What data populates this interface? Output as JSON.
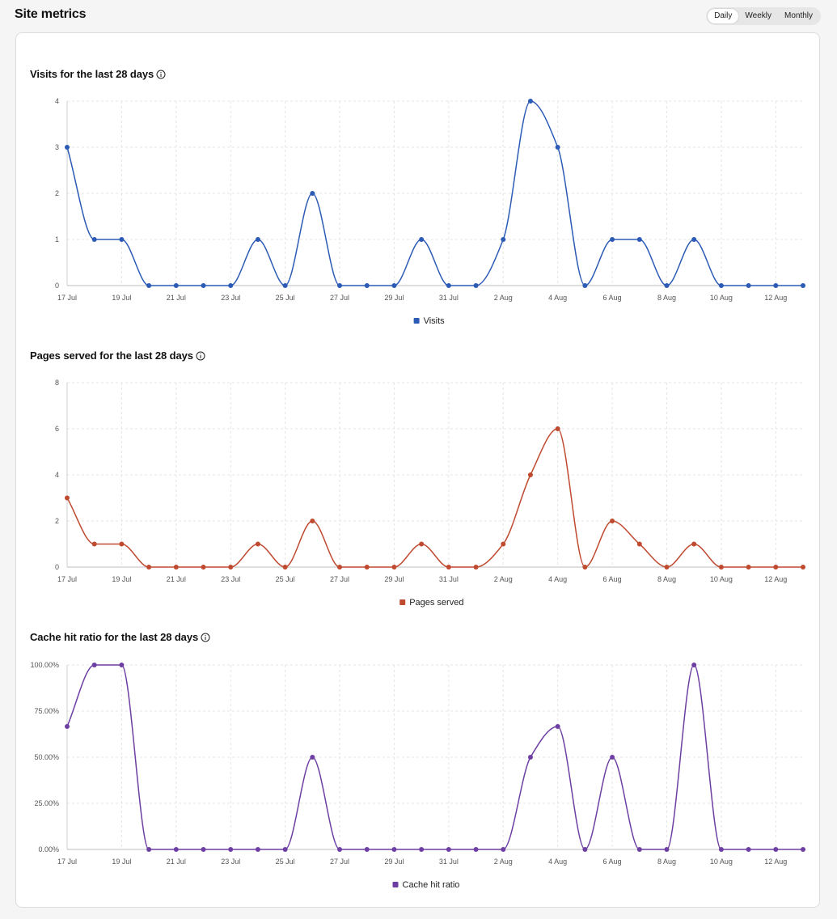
{
  "header": {
    "title": "Site metrics",
    "period_options": [
      "Daily",
      "Weekly",
      "Monthly"
    ],
    "period_selected": "Daily"
  },
  "x_dates": [
    "17 Jul",
    "18 Jul",
    "19 Jul",
    "20 Jul",
    "21 Jul",
    "22 Jul",
    "23 Jul",
    "24 Jul",
    "25 Jul",
    "26 Jul",
    "27 Jul",
    "28 Jul",
    "29 Jul",
    "30 Jul",
    "31 Jul",
    "1 Aug",
    "2 Aug",
    "3 Aug",
    "4 Aug",
    "5 Aug",
    "6 Aug",
    "7 Aug",
    "8 Aug",
    "9 Aug",
    "10 Aug",
    "11 Aug",
    "12 Aug",
    "13 Aug"
  ],
  "x_tick_labels": [
    "17 Jul",
    "19 Jul",
    "21 Jul",
    "23 Jul",
    "25 Jul",
    "27 Jul",
    "29 Jul",
    "31 Jul",
    "2 Aug",
    "4 Aug",
    "6 Aug",
    "8 Aug",
    "10 Aug",
    "12 Aug"
  ],
  "chart_data": [
    {
      "type": "line",
      "title": "Visits for the last 28 days",
      "series": [
        {
          "name": "Visits",
          "color": "#2c5bb5",
          "values": [
            3,
            1,
            1,
            0,
            0,
            0,
            0,
            1,
            0,
            2,
            0,
            0,
            0,
            1,
            0,
            0,
            1,
            4,
            3,
            0,
            1,
            1,
            0,
            1,
            0,
            0,
            0,
            0
          ]
        }
      ],
      "ylim": [
        0,
        4
      ],
      "yticks": [
        "0",
        "1",
        "2",
        "3",
        "4"
      ],
      "grid": true,
      "legend": "bottom"
    },
    {
      "type": "line",
      "title": "Pages served for the last 28 days",
      "series": [
        {
          "name": "Pages served",
          "color": "#bf4a30",
          "values": [
            3,
            1,
            1,
            0,
            0,
            0,
            0,
            1,
            0,
            2,
            0,
            0,
            0,
            1,
            0,
            0,
            1,
            4,
            6,
            0,
            2,
            1,
            0,
            1,
            0,
            0,
            0,
            0
          ]
        }
      ],
      "ylim": [
        0,
        8
      ],
      "yticks": [
        "0",
        "2",
        "4",
        "6",
        "8"
      ],
      "grid": true,
      "legend": "bottom"
    },
    {
      "type": "line",
      "title": "Cache hit ratio for the last 28 days",
      "series": [
        {
          "name": "Cache hit ratio",
          "color": "#6e3fa3",
          "values": [
            66.67,
            100,
            100,
            0,
            0,
            0,
            0,
            0,
            0,
            50,
            0,
            0,
            0,
            0,
            0,
            0,
            0,
            50,
            66.67,
            0,
            50,
            0,
            0,
            100,
            0,
            0,
            0,
            0
          ]
        }
      ],
      "ylim": [
        0,
        100
      ],
      "yticks": [
        "0.00%",
        "25.00%",
        "50.00%",
        "75.00%",
        "100.00%"
      ],
      "grid": true,
      "legend": "bottom"
    }
  ],
  "icons": {
    "info": "info-icon"
  }
}
